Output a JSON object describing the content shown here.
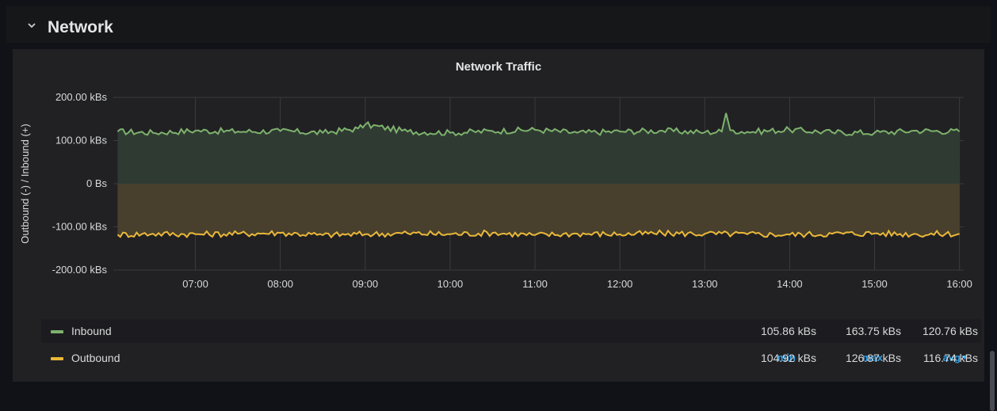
{
  "row": {
    "title": "Network",
    "chevron_icon": "chevron-down-icon"
  },
  "panel": {
    "title": "Network Traffic"
  },
  "chart_data": {
    "type": "line",
    "title": "Network Traffic",
    "ylabel": "Outbound (-) / Inbound (+)",
    "xlabel": "",
    "x_ticks": [
      "07:00",
      "08:00",
      "09:00",
      "10:00",
      "11:00",
      "12:00",
      "13:00",
      "14:00",
      "15:00",
      "16:00"
    ],
    "y_ticks": [
      "200.00 kBs",
      "100.00 kBs",
      "0 Bs",
      "-100.00 kBs",
      "-200.00 kBs"
    ],
    "ylim": [
      -200,
      200
    ],
    "x_range": [
      "06:02",
      "16:03"
    ],
    "grid": true,
    "legend_position": "bottom",
    "series": [
      {
        "name": "Inbound",
        "color": "#7eb26d",
        "fill": "#2f3b32",
        "unit": "kBs",
        "points": [
          [
            "06:05",
            121
          ],
          [
            "06:30",
            118
          ],
          [
            "07:00",
            123
          ],
          [
            "07:30",
            121
          ],
          [
            "08:00",
            122
          ],
          [
            "08:30",
            118
          ],
          [
            "08:55",
            128
          ],
          [
            "09:00",
            137
          ],
          [
            "09:30",
            121
          ],
          [
            "10:00",
            118
          ],
          [
            "10:30",
            122
          ],
          [
            "11:00",
            125
          ],
          [
            "11:30",
            118
          ],
          [
            "12:00",
            121
          ],
          [
            "12:30",
            123
          ],
          [
            "13:00",
            119
          ],
          [
            "13:12",
            121
          ],
          [
            "13:15",
            163.75
          ],
          [
            "13:18",
            124
          ],
          [
            "13:30",
            120
          ],
          [
            "14:00",
            125
          ],
          [
            "14:30",
            119
          ],
          [
            "15:00",
            118
          ],
          [
            "15:30",
            123
          ],
          [
            "16:00",
            121
          ]
        ],
        "min": "105.86 kBs",
        "max": "163.75 kBs",
        "avg": "120.76 kBs"
      },
      {
        "name": "Outbound",
        "color": "#eab839",
        "fill": "#48402d",
        "unit": "kBs",
        "points": [
          [
            "06:05",
            -118
          ],
          [
            "06:30",
            -116
          ],
          [
            "07:00",
            -117
          ],
          [
            "07:30",
            -116
          ],
          [
            "08:00",
            -114
          ],
          [
            "08:30",
            -119
          ],
          [
            "09:00",
            -117
          ],
          [
            "09:30",
            -115
          ],
          [
            "10:00",
            -117
          ],
          [
            "10:30",
            -114
          ],
          [
            "11:00",
            -119
          ],
          [
            "11:30",
            -116
          ],
          [
            "12:00",
            -117
          ],
          [
            "12:30",
            -115
          ],
          [
            "13:00",
            -116
          ],
          [
            "13:30",
            -117
          ],
          [
            "14:00",
            -118
          ],
          [
            "14:30",
            -116
          ],
          [
            "15:00",
            -115
          ],
          [
            "15:30",
            -117
          ],
          [
            "16:00",
            -116
          ]
        ],
        "min": "104.92 kBs",
        "max": "126.87 kBs",
        "avg": "116.74 kBs"
      }
    ]
  },
  "legend": {
    "headers": {
      "min": "min",
      "max": "max",
      "avg": "avg"
    },
    "sort_icon": "sort-desc-icon",
    "rows": [
      {
        "name": "Inbound",
        "color": "#7eb26d",
        "min": "105.86 kBs",
        "max": "163.75 kBs",
        "avg": "120.76 kBs"
      },
      {
        "name": "Outbound",
        "color": "#eab839",
        "min": "104.92 kBs",
        "max": "126.87 kBs",
        "avg": "116.74 kBs"
      }
    ]
  }
}
